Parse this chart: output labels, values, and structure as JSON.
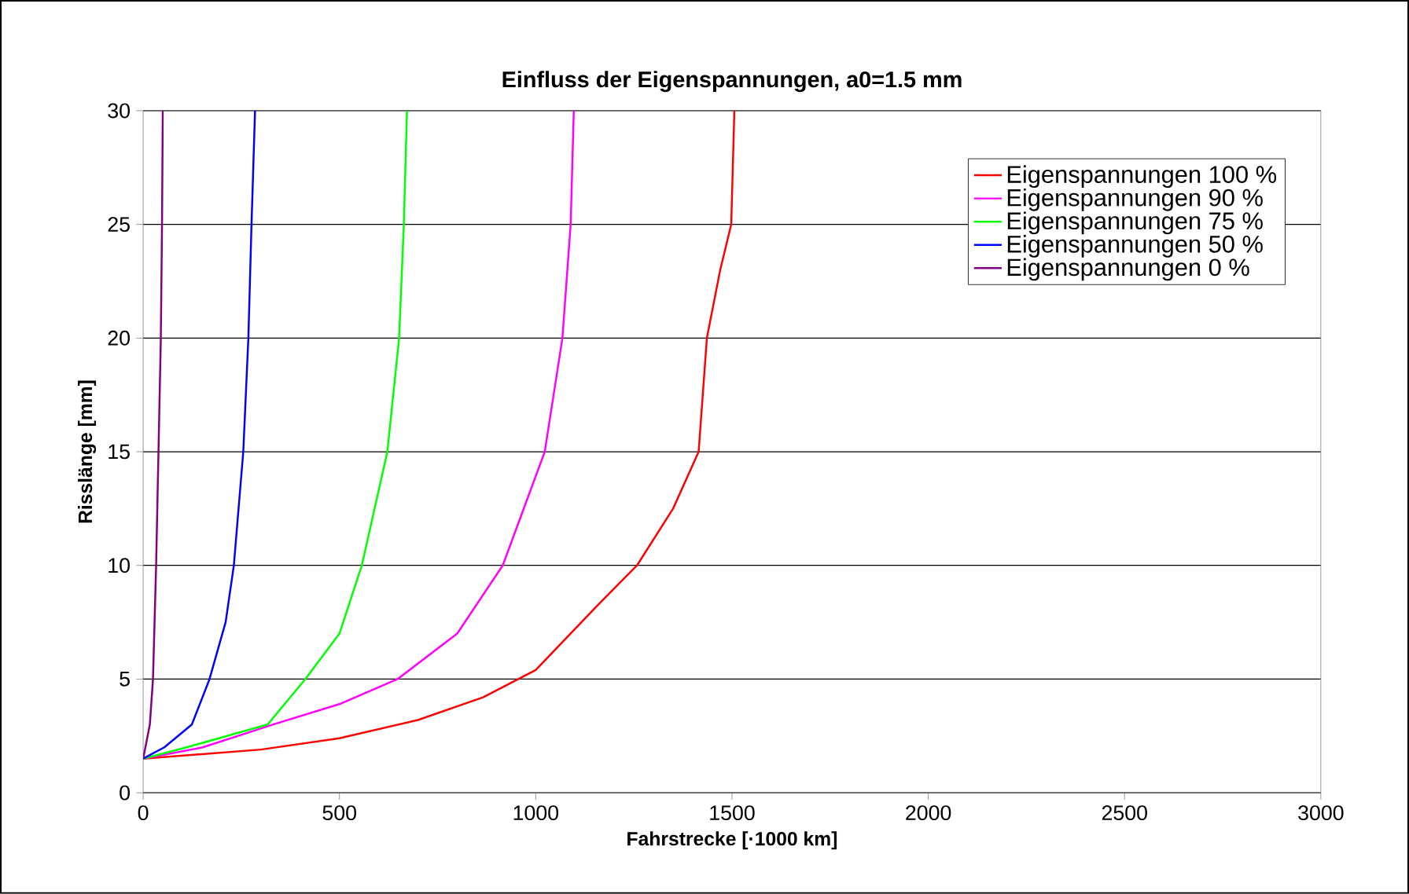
{
  "chart_data": {
    "type": "line",
    "title": "Einfluss der Eigenspannungen, a0=1.5 mm",
    "xlabel": "Fahrstrecke [·1000 km]",
    "ylabel": "Risslänge [mm]",
    "xlim": [
      0,
      3000
    ],
    "ylim": [
      0,
      30
    ],
    "xticks": [
      0,
      500,
      1000,
      1500,
      2000,
      2500,
      3000
    ],
    "yticks": [
      0,
      5,
      10,
      15,
      20,
      25,
      30
    ],
    "grid": "y",
    "legend": "top right",
    "marker": "none",
    "line_style": "solid",
    "series": [
      {
        "name": "Eigenspannungen  100 %",
        "color": "#ff0000",
        "x": [
          0,
          300,
          500,
          700,
          866,
          1000,
          1155,
          1258,
          1350,
          1415,
          1436,
          1470,
          1498,
          1506
        ],
        "values": [
          1.5,
          1.9,
          2.4,
          3.2,
          4.2,
          5.4,
          8.2,
          10,
          12.5,
          15,
          20,
          23,
          25,
          30
        ]
      },
      {
        "name": "Eigenspannungen  90 %",
        "color": "#ff00ff",
        "x": [
          0,
          152,
          330,
          500,
          648,
          800,
          916,
          1023,
          1068,
          1089,
          1097
        ],
        "values": [
          1.5,
          2,
          3,
          3.9,
          5,
          7,
          10,
          15,
          20,
          25,
          30
        ]
      },
      {
        "name": "Eigenspannungen  75 %",
        "color": "#00ff00",
        "x": [
          0,
          111,
          317,
          413,
          500,
          557,
          622,
          652,
          664,
          672
        ],
        "values": [
          1.5,
          2,
          3,
          5,
          7,
          10,
          15,
          20,
          25,
          30
        ]
      },
      {
        "name": "Eigenspannungen  50 %",
        "color": "#0000ff",
        "x": [
          0,
          54,
          124,
          169,
          210,
          231,
          255,
          268,
          276,
          285
        ],
        "values": [
          1.5,
          2,
          3,
          5,
          7.5,
          10,
          15,
          20,
          25,
          30
        ]
      },
      {
        "name": "Eigenspannungen  0 %",
        "color": "#800080",
        "x": [
          0,
          17,
          25,
          33,
          39,
          45,
          48,
          50
        ],
        "values": [
          1.5,
          3,
          5,
          10,
          15,
          20,
          25,
          30
        ]
      }
    ]
  }
}
